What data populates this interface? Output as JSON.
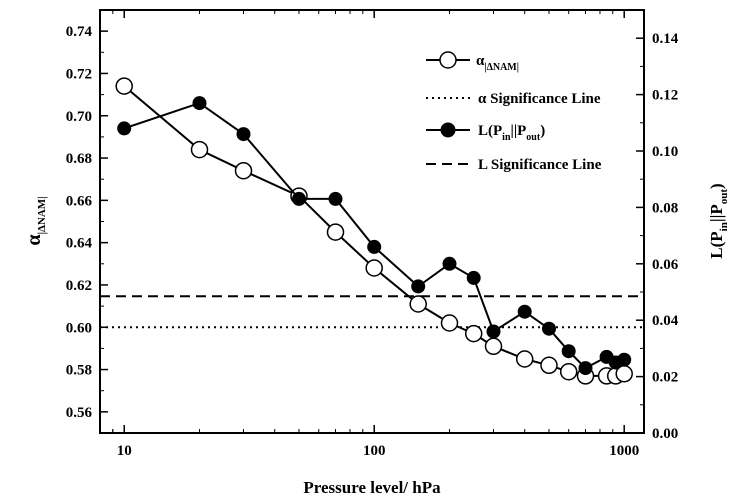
{
  "chart_data": {
    "type": "line",
    "xlabel": "Pressure level/ hPa",
    "ylabel_left": {
      "main": "α",
      "sub": "|ΔNAM|"
    },
    "ylabel_right": {
      "main": "L(P",
      "sub1": "in",
      "mid": "||P",
      "sub2": "out",
      "end": ")"
    },
    "x_scale": "log",
    "xlim": [
      8,
      1200
    ],
    "x_ticks": [
      10,
      100,
      1000
    ],
    "x_tick_labels": [
      "10",
      "100",
      "1000"
    ],
    "ylim_left": [
      0.55,
      0.75
    ],
    "y_ticks_left": [
      0.56,
      0.58,
      0.6,
      0.62,
      0.64,
      0.66,
      0.68,
      0.7,
      0.72,
      0.74
    ],
    "y_tick_labels_left": [
      "0.56",
      "0.58",
      "0.60",
      "0.62",
      "0.64",
      "0.66",
      "0.68",
      "0.70",
      "0.72",
      "0.74"
    ],
    "ylim_right": [
      0.0,
      0.15
    ],
    "y_ticks_right": [
      0.0,
      0.02,
      0.04,
      0.06,
      0.08,
      0.1,
      0.12,
      0.14
    ],
    "y_tick_labels_right": [
      "0.00",
      "0.02",
      "0.04",
      "0.06",
      "0.08",
      "0.10",
      "0.12",
      "0.14"
    ],
    "series": [
      {
        "name": "α|ΔNAM|",
        "axis": "left",
        "marker": "open-circle",
        "x": [
          10,
          20,
          30,
          50,
          70,
          100,
          150,
          200,
          250,
          300,
          400,
          500,
          600,
          700,
          850,
          925,
          1000
        ],
        "y": [
          0.714,
          0.684,
          0.674,
          0.662,
          0.645,
          0.628,
          0.611,
          0.602,
          0.597,
          0.591,
          0.585,
          0.582,
          0.579,
          0.577,
          0.577,
          0.577,
          0.578
        ]
      },
      {
        "name": "L(Pin||Pout)",
        "axis": "right",
        "marker": "filled-circle",
        "x": [
          10,
          20,
          30,
          50,
          70,
          100,
          150,
          200,
          250,
          300,
          400,
          500,
          600,
          700,
          850,
          925,
          1000
        ],
        "y": [
          0.108,
          0.117,
          0.106,
          0.083,
          0.083,
          0.066,
          0.052,
          0.06,
          0.055,
          0.036,
          0.043,
          0.037,
          0.029,
          0.023,
          0.027,
          0.025,
          0.026
        ]
      }
    ],
    "reference_lines": [
      {
        "name": "α Significance Line",
        "axis": "left",
        "y": 0.6,
        "style": "dotted"
      },
      {
        "name": "L Significance Line",
        "axis": "right",
        "y": 0.0485,
        "style": "dashed"
      }
    ],
    "legend": {
      "placement": "top-right",
      "entries": [
        {
          "marker": "open-circle",
          "line": "solid",
          "text_main": "α",
          "text_sub": "|ΔNAM|"
        },
        {
          "marker": "none",
          "line": "dotted",
          "text": "α Significance Line"
        },
        {
          "marker": "filled-circle",
          "line": "solid",
          "text_main": "L(P",
          "text_sub1": "in",
          "text_mid": "||P",
          "text_sub2": "out",
          "text_end": ")"
        },
        {
          "marker": "none",
          "line": "dashed",
          "text": "L Significance Line"
        }
      ]
    },
    "grid": false
  }
}
